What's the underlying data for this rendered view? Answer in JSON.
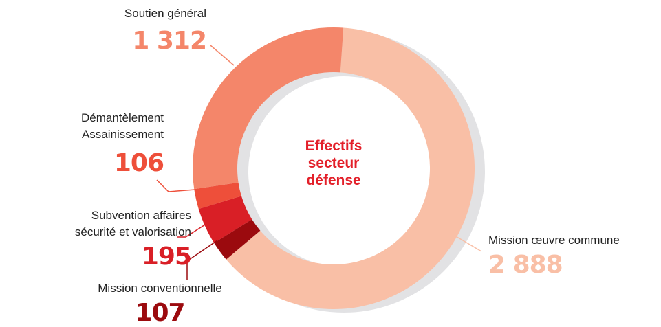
{
  "chart_data": {
    "type": "donut",
    "title": "Effectifs secteur défense",
    "categories": [
      "Mission œuvre commune",
      "Mission conventionnelle",
      "Subvention affaires\nsécurité et valorisation",
      "Démantèlement\nAssainissement",
      "Soutien général"
    ],
    "values": [
      2888,
      107,
      195,
      106,
      1312
    ],
    "value_labels": [
      "2 888",
      "107",
      "195",
      "106",
      "1 312"
    ],
    "colors": [
      "#f9bfa6",
      "#9b0a0e",
      "#d91f26",
      "#ee4f3a",
      "#f4866a"
    ]
  }
}
